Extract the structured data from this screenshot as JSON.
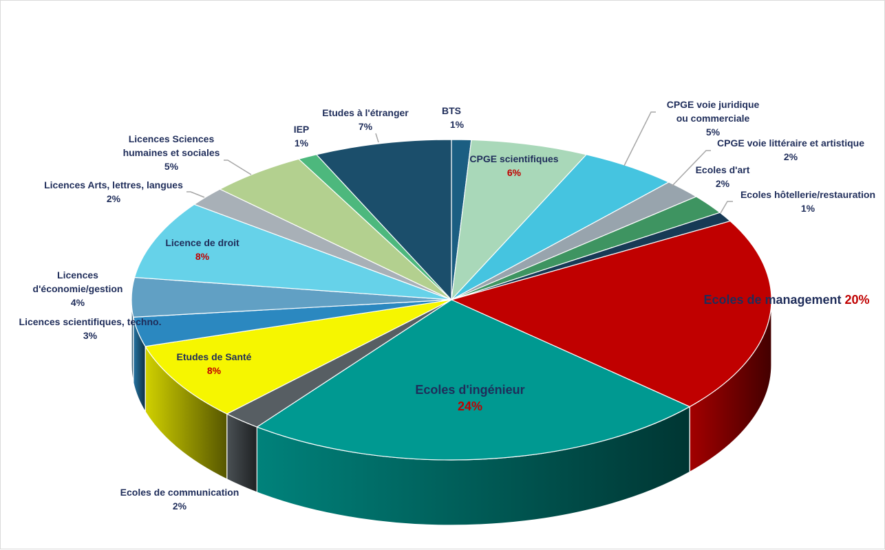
{
  "chart_data": {
    "type": "pie",
    "variant": "3d-pie",
    "title": "",
    "slices": [
      {
        "label": "BTS",
        "value": 1,
        "display_value": "1%",
        "color": "#1b5e82"
      },
      {
        "label": "CPGE scientifiques",
        "value": 6,
        "display_value": "6%",
        "color": "#a9d8b9",
        "value_color": "#c00000"
      },
      {
        "label": "CPGE voie juridique ou commerciale",
        "value": 5,
        "display_value": "5%",
        "color": "#45c4e0"
      },
      {
        "label": "CPGE voie littéraire et artistique",
        "value": 2,
        "display_value": "2%",
        "color": "#98a4ad"
      },
      {
        "label": "Ecoles d'art",
        "value": 2,
        "display_value": "2%",
        "color": "#3e9461"
      },
      {
        "label": "Ecoles hôtellerie/restauration",
        "value": 1,
        "display_value": "1%",
        "color": "#173a55"
      },
      {
        "label": "Ecoles de management",
        "value": 20,
        "display_value": "20%",
        "color": "#c00000",
        "value_color": "#c00000"
      },
      {
        "label": "Ecoles d'ingénieur",
        "value": 24,
        "display_value": "24%",
        "color": "#009991",
        "value_color": "#c00000"
      },
      {
        "label": "Ecoles de communication",
        "value": 2,
        "display_value": "2%",
        "color": "#575e63"
      },
      {
        "label": "Etudes de Santé",
        "value": 8,
        "display_value": "8%",
        "color": "#f6f600",
        "value_color": "#c00000"
      },
      {
        "label": "Licences scientifiques, techno.",
        "value": 3,
        "display_value": "3%",
        "color": "#2b88c0"
      },
      {
        "label": "Licences d'économie/gestion",
        "value": 4,
        "display_value": "4%",
        "color": "#61a0c4"
      },
      {
        "label": "Licence de droit",
        "value": 8,
        "display_value": "8%",
        "color": "#66d2e9",
        "value_color": "#c00000"
      },
      {
        "label": "Licences Arts, lettres, langues",
        "value": 2,
        "display_value": "2%",
        "color": "#a8b0b7"
      },
      {
        "label": "Licences Sciences humaines et sociales",
        "value": 5,
        "display_value": "5%",
        "color": "#b3d08f"
      },
      {
        "label": "IEP",
        "value": 1,
        "display_value": "1%",
        "color": "#4db87d"
      },
      {
        "label": "Etudes à l'étranger",
        "value": 7,
        "display_value": "7%",
        "color": "#1b4e6b"
      }
    ],
    "legend": "none",
    "label_color": "#1f2d5a"
  }
}
